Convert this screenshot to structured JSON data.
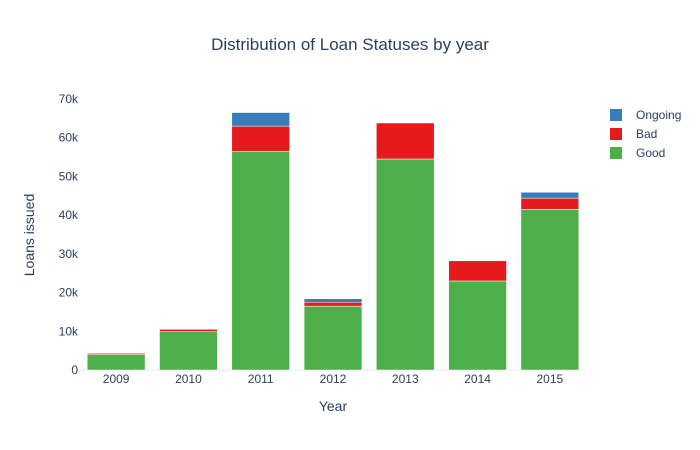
{
  "chart_data": {
    "type": "bar",
    "stacked": true,
    "title": "Distribution of Loan Statuses by year",
    "xlabel": "Year",
    "ylabel": "Loans issued",
    "categories": [
      "2009",
      "2010",
      "2011",
      "2012",
      "2013",
      "2014",
      "2015"
    ],
    "ylim": [
      0,
      70000
    ],
    "yticks": [
      0,
      10000,
      20000,
      30000,
      40000,
      50000,
      60000,
      70000
    ],
    "ytick_labels": [
      "0",
      "10k",
      "20k",
      "30k",
      "40k",
      "50k",
      "60k",
      "70k"
    ],
    "grid": false,
    "legend": "top-right",
    "series": [
      {
        "name": "Good",
        "color": "#4daf4a",
        "values": [
          4000,
          9900,
          56500,
          16500,
          54500,
          23000,
          41500
        ]
      },
      {
        "name": "Bad",
        "color": "#e41a1c",
        "values": [
          300,
          600,
          6500,
          1000,
          9300,
          5200,
          2900
        ]
      },
      {
        "name": "Ongoing",
        "color": "#377eb8",
        "values": [
          0,
          0,
          3500,
          900,
          0,
          0,
          1500
        ]
      }
    ],
    "legend_order": [
      "Ongoing",
      "Bad",
      "Good"
    ]
  }
}
